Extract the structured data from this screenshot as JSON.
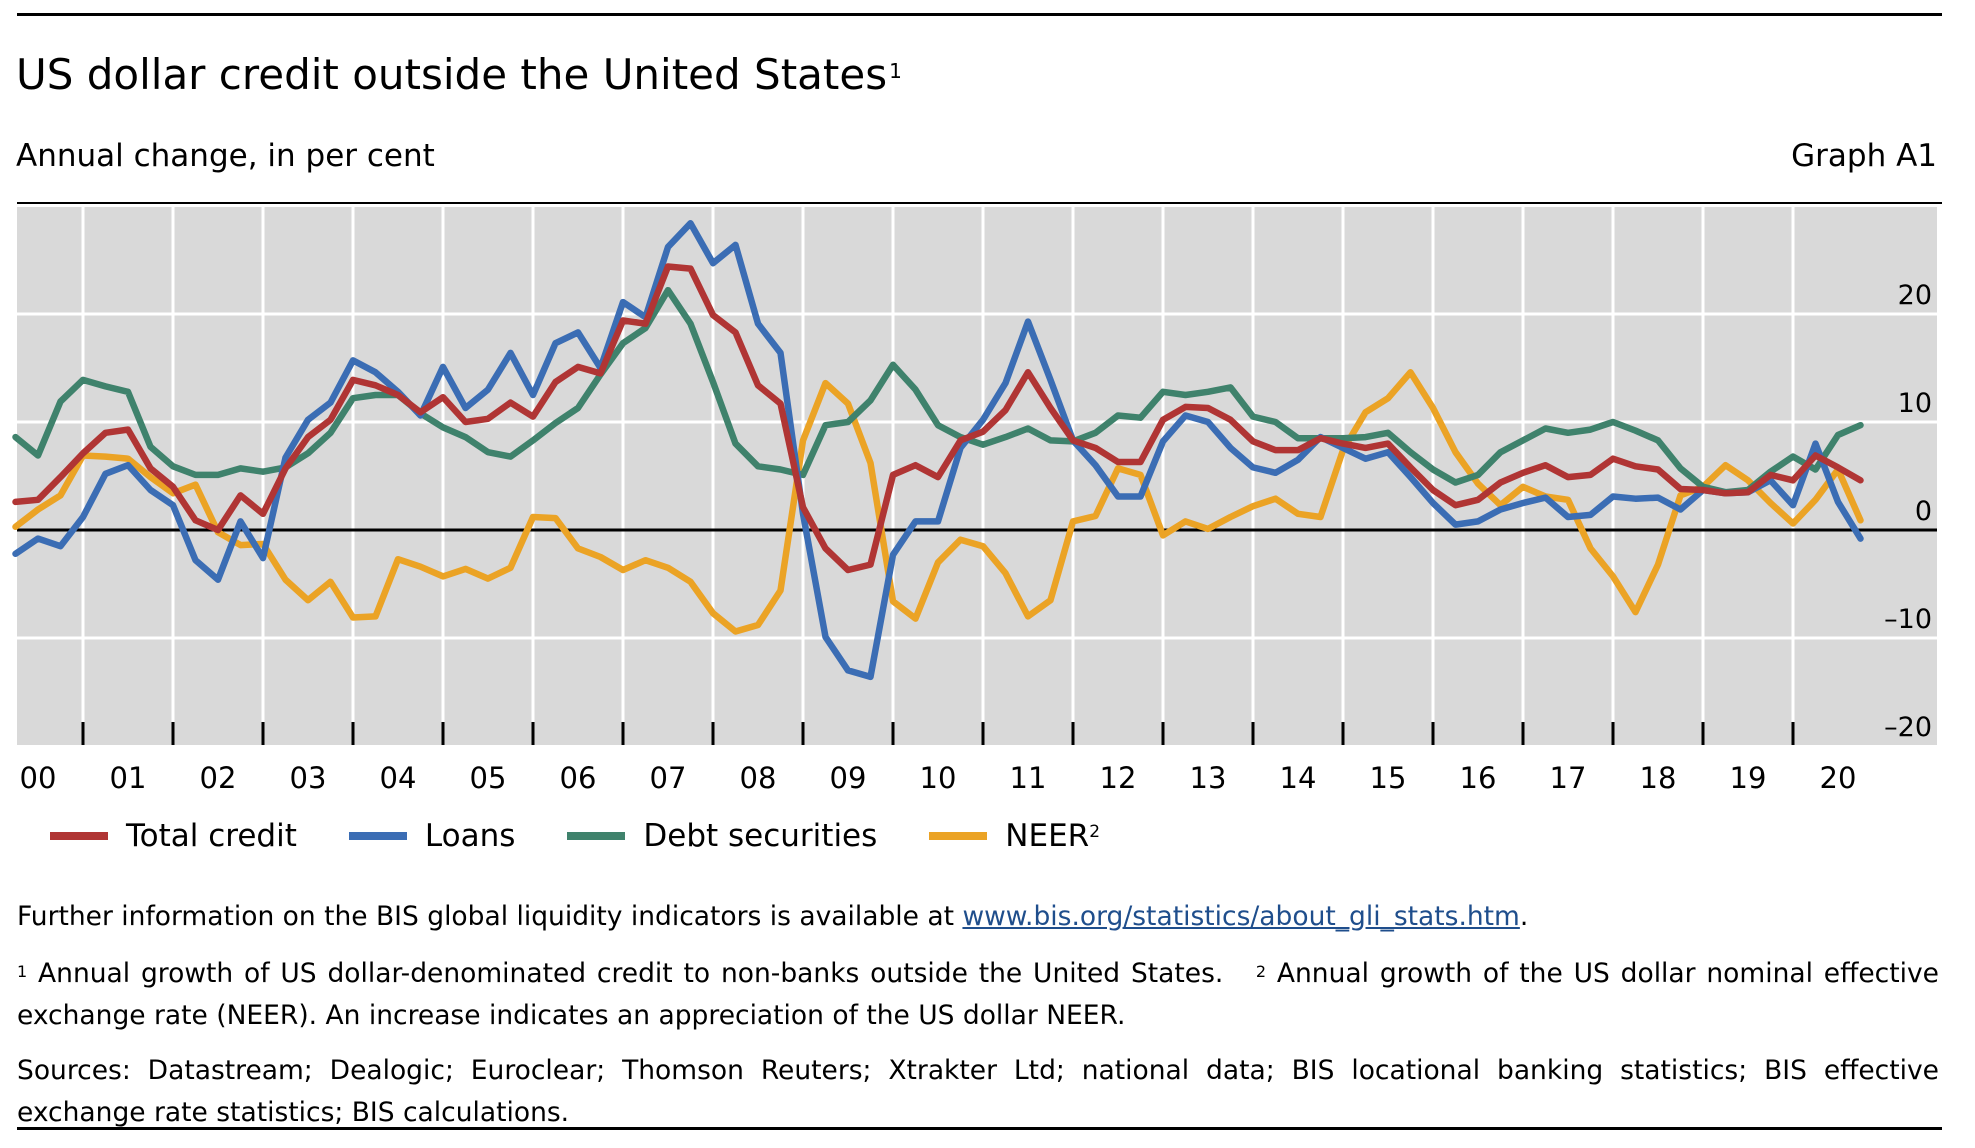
{
  "header": {
    "title": "US dollar credit outside the United States",
    "title_footnote_ref": "1",
    "subtitle": "Annual change, in per cent",
    "graph_id": "Graph A1"
  },
  "colors": {
    "total_credit": "#b03534",
    "loans": "#3b6db4",
    "debt_securities": "#3f826c",
    "neer": "#eba325",
    "plot_background": "#d9d9d9",
    "gridline": "#ffffff",
    "link": "#1f4e8c"
  },
  "legend": [
    {
      "label": "Total credit",
      "series": "total_credit",
      "sup": ""
    },
    {
      "label": "Loans",
      "series": "loans",
      "sup": ""
    },
    {
      "label": "Debt securities",
      "series": "debt_securities",
      "sup": ""
    },
    {
      "label": "NEER",
      "series": "neer",
      "sup": "2"
    }
  ],
  "notes": {
    "further_text": "Further information on the BIS global liquidity indicators is available at ",
    "further_link": "www.bis.org/statistics/about_gli_stats.htm",
    "further_end": ".",
    "fn1_marker": "1",
    "fn1_text": " Annual growth of US dollar-denominated credit to non-banks outside the United States. ",
    "fn2_marker": "2",
    "fn2_text": " Annual growth of the US dollar nominal effective exchange rate (NEER). An increase indicates an appreciation of the US dollar NEER.",
    "sources": "Sources: Datastream; Dealogic; Euroclear; Thomson Reuters; Xtrakter Ltd; national data; BIS locational banking statistics; BIS effective exchange rate statistics; BIS calculations."
  },
  "chart_data": {
    "type": "line",
    "title": "US dollar credit outside the United States",
    "subtitle": "Annual change, in per cent",
    "xlabel": "",
    "ylabel": "Annual change, in per cent",
    "frequency": "quarterly",
    "x_start": "2000-Q1",
    "x_end": "2020-Q3",
    "x_tick_labels": [
      "00",
      "01",
      "02",
      "03",
      "04",
      "05",
      "06",
      "07",
      "08",
      "09",
      "10",
      "11",
      "12",
      "13",
      "14",
      "15",
      "16",
      "17",
      "18",
      "19",
      "20"
    ],
    "y_ticks": [
      -20,
      -10,
      0,
      10,
      20
    ],
    "y_tick_labels": [
      "–20",
      "–10",
      "0",
      "10",
      "20"
    ],
    "ylim": [
      -20,
      30
    ],
    "grid": true,
    "y_axis_side": "right",
    "legend_position": "bottom",
    "series": [
      {
        "name": "Total credit",
        "key": "total_credit",
        "values": [
          2.6,
          2.8,
          4.9,
          7.1,
          9.0,
          9.3,
          5.7,
          4.0,
          0.9,
          0.0,
          3.2,
          1.5,
          5.7,
          8.6,
          10.2,
          13.9,
          13.4,
          12.5,
          10.9,
          12.3,
          10.0,
          10.3,
          11.8,
          10.5,
          13.7,
          15.1,
          14.5,
          19.4,
          19.1,
          24.4,
          24.2,
          19.9,
          18.3,
          13.4,
          11.7,
          2.1,
          -1.7,
          -3.7,
          -3.2,
          5.1,
          6.0,
          4.9,
          8.3,
          9.1,
          11.1,
          14.6,
          11.3,
          8.3,
          7.6,
          6.3,
          6.3,
          10.2,
          11.4,
          11.3,
          10.2,
          8.2,
          7.4,
          7.4,
          8.5,
          8.0,
          7.6,
          8.0,
          5.8,
          3.7,
          2.3,
          2.8,
          4.4,
          5.3,
          6.0,
          4.9,
          5.1,
          6.6,
          5.9,
          5.6,
          3.8,
          3.7,
          3.4,
          3.5,
          5.1,
          4.6,
          6.9,
          5.8,
          4.6
        ]
      },
      {
        "name": "Loans",
        "key": "loans",
        "values": [
          -2.2,
          -0.8,
          -1.5,
          1.2,
          5.2,
          6.0,
          3.7,
          2.3,
          -2.8,
          -4.6,
          0.8,
          -2.6,
          6.7,
          10.2,
          11.8,
          15.7,
          14.6,
          12.8,
          10.6,
          15.1,
          11.3,
          13.0,
          16.4,
          12.5,
          17.3,
          18.3,
          15.0,
          21.1,
          19.7,
          26.2,
          28.4,
          24.7,
          26.4,
          19.1,
          16.4,
          1.5,
          -9.9,
          -13.0,
          -13.6,
          -2.3,
          0.8,
          0.8,
          7.6,
          10.2,
          13.6,
          19.3,
          13.9,
          8.3,
          6.0,
          3.1,
          3.1,
          8.2,
          10.6,
          10.0,
          7.6,
          5.8,
          5.3,
          6.5,
          8.6,
          7.6,
          6.6,
          7.2,
          4.9,
          2.5,
          0.5,
          0.8,
          1.9,
          2.5,
          3.0,
          1.2,
          1.4,
          3.1,
          2.9,
          3.0,
          1.9,
          3.7,
          3.4,
          3.5,
          4.6,
          2.3,
          8.0,
          2.6,
          -0.8
        ]
      },
      {
        "name": "Debt securities",
        "key": "debt_securities",
        "values": [
          8.6,
          6.9,
          11.9,
          13.9,
          13.3,
          12.8,
          7.7,
          5.9,
          5.1,
          5.1,
          5.7,
          5.4,
          5.8,
          7.1,
          9.0,
          12.2,
          12.5,
          12.5,
          10.8,
          9.5,
          8.6,
          7.2,
          6.8,
          8.3,
          9.9,
          11.3,
          14.4,
          17.3,
          18.7,
          22.2,
          19.1,
          13.7,
          8.0,
          5.9,
          5.6,
          5.1,
          9.7,
          10.0,
          12.0,
          15.3,
          13.0,
          9.7,
          8.6,
          7.9,
          8.6,
          9.4,
          8.3,
          8.2,
          9.0,
          10.6,
          10.4,
          12.8,
          12.5,
          12.8,
          13.2,
          10.5,
          10.0,
          8.5,
          8.5,
          8.5,
          8.6,
          9.0,
          7.2,
          5.6,
          4.4,
          5.1,
          7.2,
          8.3,
          9.4,
          9.0,
          9.3,
          10.0,
          9.2,
          8.3,
          5.7,
          4.0,
          3.5,
          3.7,
          5.4,
          6.8,
          5.6,
          8.8,
          9.7
        ]
      },
      {
        "name": "NEER",
        "key": "neer",
        "values": [
          0.3,
          1.9,
          3.2,
          6.9,
          6.8,
          6.6,
          4.9,
          3.4,
          4.2,
          -0.2,
          -1.4,
          -1.3,
          -4.6,
          -6.5,
          -4.8,
          -8.1,
          -8.0,
          -2.7,
          -3.4,
          -4.3,
          -3.6,
          -4.5,
          -3.5,
          1.2,
          1.1,
          -1.7,
          -2.5,
          -3.7,
          -2.8,
          -3.5,
          -4.8,
          -7.7,
          -9.4,
          -8.8,
          -5.6,
          8.3,
          13.6,
          11.7,
          6.2,
          -6.6,
          -8.2,
          -3.0,
          -0.9,
          -1.5,
          -4.0,
          -8.0,
          -6.5,
          0.8,
          1.3,
          5.7,
          5.1,
          -0.5,
          0.8,
          0.1,
          1.2,
          2.2,
          2.9,
          1.5,
          1.2,
          7.4,
          10.9,
          12.2,
          14.6,
          11.3,
          7.2,
          4.3,
          2.3,
          4.0,
          3.1,
          2.8,
          -1.7,
          -4.3,
          -7.6,
          -3.2,
          3.2,
          4.0,
          6.0,
          4.6,
          2.5,
          0.6,
          2.8,
          5.6,
          0.9
        ]
      }
    ]
  }
}
